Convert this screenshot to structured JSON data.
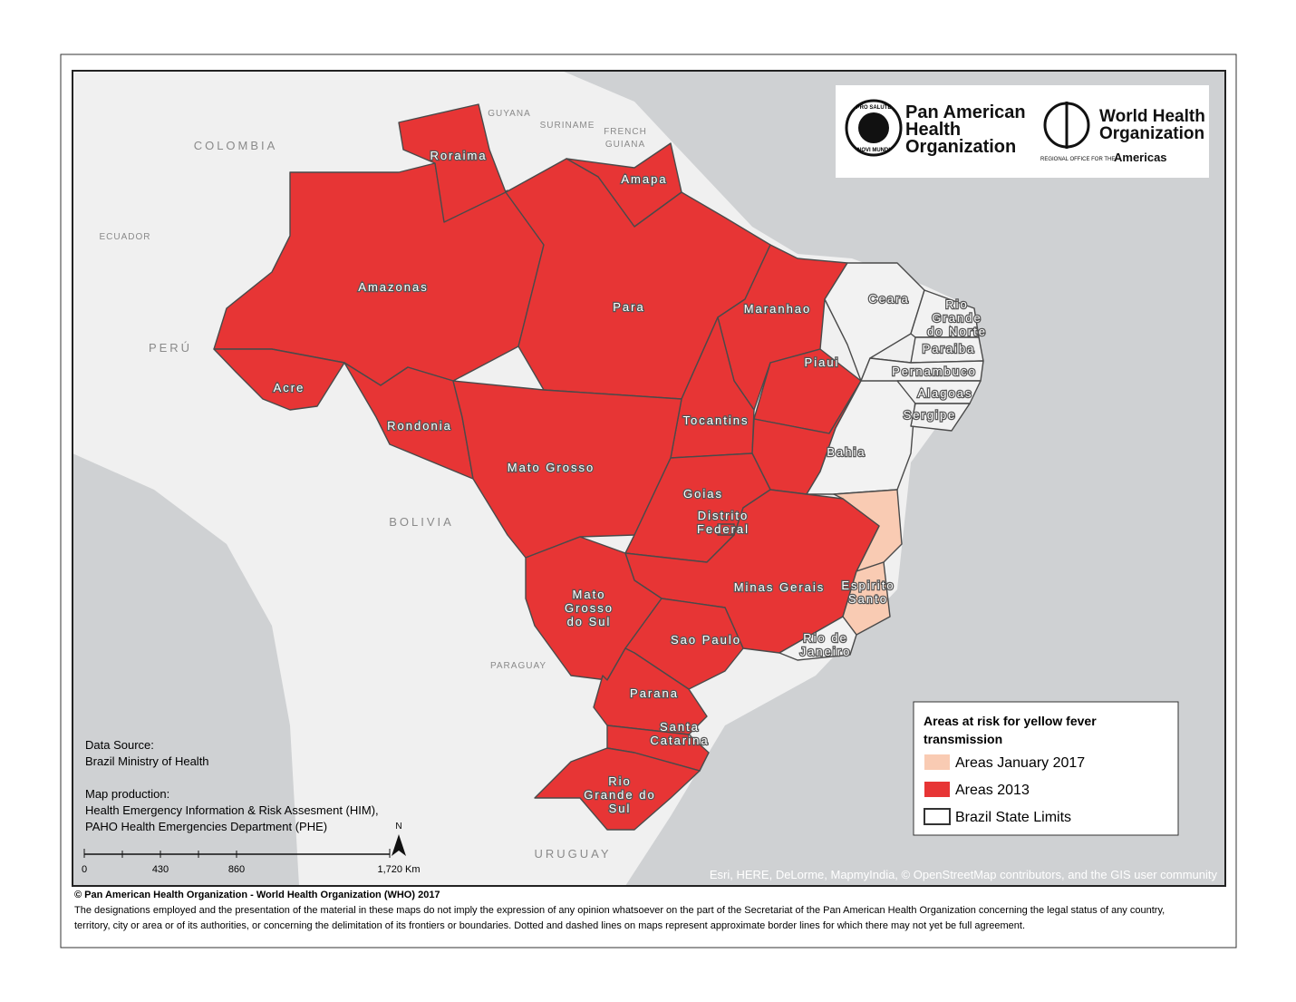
{
  "logos": {
    "paho": {
      "name_lines": [
        "Pan American",
        "Health",
        "Organization"
      ],
      "motto_top": "PRO SALUTE",
      "motto_bottom": "NOVI MUNDI"
    },
    "who": {
      "name_lines": [
        "World Health",
        "Organization"
      ],
      "office": "REGIONAL OFFICE FOR THE",
      "region": "Americas"
    }
  },
  "countries": [
    "COLOMBIA",
    "ECUADOR",
    "PERÚ",
    "BOLIVIA",
    "PARAGUAY",
    "URUGUAY",
    "GUYANA",
    "SURINAME",
    "FRENCH",
    "GUIANA"
  ],
  "states": [
    {
      "lines": [
        "Roraima"
      ]
    },
    {
      "lines": [
        "Amapa"
      ]
    },
    {
      "lines": [
        "Amazonas"
      ]
    },
    {
      "lines": [
        "Para"
      ]
    },
    {
      "lines": [
        "Maranhao"
      ]
    },
    {
      "lines": [
        "Ceara"
      ]
    },
    {
      "lines": [
        "Rio",
        "Grande",
        "do Norte"
      ]
    },
    {
      "lines": [
        "Paraiba"
      ]
    },
    {
      "lines": [
        "Piaui"
      ]
    },
    {
      "lines": [
        "Pernambuco"
      ]
    },
    {
      "lines": [
        "Alagoas"
      ]
    },
    {
      "lines": [
        "Sergipe"
      ]
    },
    {
      "lines": [
        "Acre"
      ]
    },
    {
      "lines": [
        "Rondonia"
      ]
    },
    {
      "lines": [
        "Tocantins"
      ]
    },
    {
      "lines": [
        "Bahia"
      ]
    },
    {
      "lines": [
        "Mato Grosso"
      ]
    },
    {
      "lines": [
        "Goias"
      ]
    },
    {
      "lines": [
        "Distrito",
        "Federal"
      ]
    },
    {
      "lines": [
        "Minas Gerais"
      ]
    },
    {
      "lines": [
        "Espirito",
        "Santo"
      ]
    },
    {
      "lines": [
        "Mato",
        "Grosso",
        "do Sul"
      ]
    },
    {
      "lines": [
        "Sao Paulo"
      ]
    },
    {
      "lines": [
        "Rio de",
        "Janeiro"
      ]
    },
    {
      "lines": [
        "Parana"
      ]
    },
    {
      "lines": [
        "Santa",
        "Catarina"
      ]
    },
    {
      "lines": [
        "Rio",
        "Grande do",
        "Sul"
      ]
    }
  ],
  "legend": {
    "title_lines": [
      "Areas at risk for yellow fever",
      "transmission"
    ],
    "items": [
      {
        "label": "Areas January 2017",
        "color": "#f9cbb3"
      },
      {
        "label": "Areas 2013",
        "color": "#e73535"
      },
      {
        "label": "Brazil State Limits",
        "color": "#ffffff"
      }
    ]
  },
  "source": {
    "heading": "Data Source:",
    "text": "Brazil Ministry of Health",
    "production_heading": "Map production:",
    "production_lines": [
      "Health Emergency Information & Risk Assesment (HIM),",
      "PAHO Health Emergencies Department (PHE)"
    ]
  },
  "scale": {
    "labels": [
      "0",
      "430",
      "860",
      "1,720 Km"
    ],
    "north": "N"
  },
  "attribution": "Esri, HERE, DeLorme, MapmyIndia, © OpenStreetMap contributors, and the GIS user community",
  "footer": {
    "copyright": "© Pan American Health Organization - World Health Organization (WHO) 2017",
    "disclaimer_lines": [
      "The designations employed and the presentation of the material in these maps do not imply the expression of any opinion whatsoever on the part of the Secretariat of the Pan American Health Organization concerning the legal status of any country,",
      "territory, city or area or of its authorities, or concerning the delimitation of its frontiers or boundaries. Dotted and dashed lines on maps represent approximate border lines for which there may not yet be full agreement."
    ]
  }
}
